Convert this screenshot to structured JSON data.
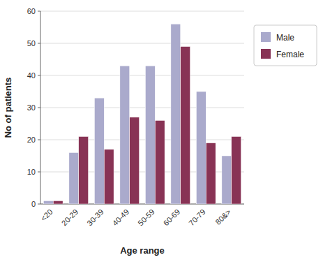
{
  "chart_data": {
    "type": "bar",
    "categories": [
      "<20",
      "20-29",
      "30-39",
      "40-49",
      "50-59",
      "60-69",
      "70-79",
      "80&>"
    ],
    "series": [
      {
        "name": "Male",
        "color": "#aaaacc",
        "values": [
          1,
          16,
          33,
          43,
          43,
          56,
          35,
          15
        ]
      },
      {
        "name": "Female",
        "color": "#883355",
        "values": [
          1,
          21,
          17,
          27,
          26,
          49,
          19,
          21
        ]
      }
    ],
    "xlabel": "Age range",
    "ylabel": "No of patients",
    "ylim": [
      0,
      60
    ],
    "yticks": [
      0,
      10,
      20,
      30,
      40,
      50,
      60
    ],
    "grid": true,
    "legend": "right"
  }
}
